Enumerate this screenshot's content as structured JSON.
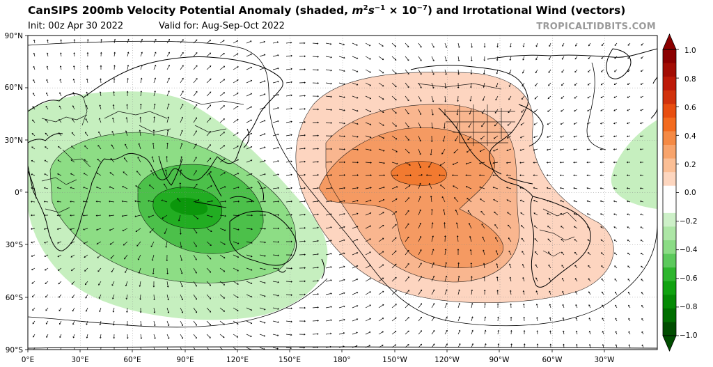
{
  "header": {
    "title_prefix": "CanSIPS 200mb Velocity Potential Anomaly (shaded, ",
    "title_unit_m": "m",
    "title_unit_exp2": "2",
    "title_unit_s": "s",
    "title_unit_expm1": "−1",
    "title_unit_times": " × 10",
    "title_unit_expm7": "−7",
    "title_suffix": ") and Irrotational Wind (vectors)",
    "init": "Init: 00z Apr 30 2022",
    "valid": "Valid for: Aug-Sep-Oct 2022",
    "brand": "TROPICALTIDBITS.COM"
  },
  "map": {
    "lat_labels": [
      "90°N",
      "60°N",
      "30°N",
      "0°",
      "30°S",
      "60°S",
      "90°S"
    ],
    "lon_labels": [
      "0°E",
      "30°E",
      "60°E",
      "90°E",
      "120°E",
      "150°E",
      "180°",
      "150°W",
      "120°W",
      "90°W",
      "60°W",
      "30°W"
    ],
    "layers": [
      "coastlines",
      "country-borders",
      "us-state-borders",
      "velocity-potential-contours",
      "irrotational-wind-vectors"
    ]
  },
  "colorbar": {
    "tick_labels": [
      "1.0",
      "0.8",
      "0.6",
      "0.4",
      "0.2",
      "0.0",
      "−0.2",
      "−0.4",
      "−0.6",
      "−0.8",
      "−1.0"
    ],
    "colors": [
      "#8b0000",
      "#a30d04",
      "#bd1a08",
      "#d1320c",
      "#e84e10",
      "#f36b1f",
      "#f58a45",
      "#f8a46c",
      "#fbbf96",
      "#fdd6bf",
      "#ffffff",
      "#ffffff",
      "#cdf0c8",
      "#ade6a6",
      "#8bdc85",
      "#5cc95c",
      "#2eb52e",
      "#10a210",
      "#058a05",
      "#006e00",
      "#004d00"
    ],
    "shading_colors": {
      "pos1": "#fdd5c0",
      "pos2": "#f9b68f",
      "pos3": "#f59a62",
      "pos4": "#f27a30",
      "neg1": "#c6efbf",
      "neg2": "#8ddd85",
      "neg3": "#4cc04a",
      "neg4": "#22ad22"
    }
  }
}
